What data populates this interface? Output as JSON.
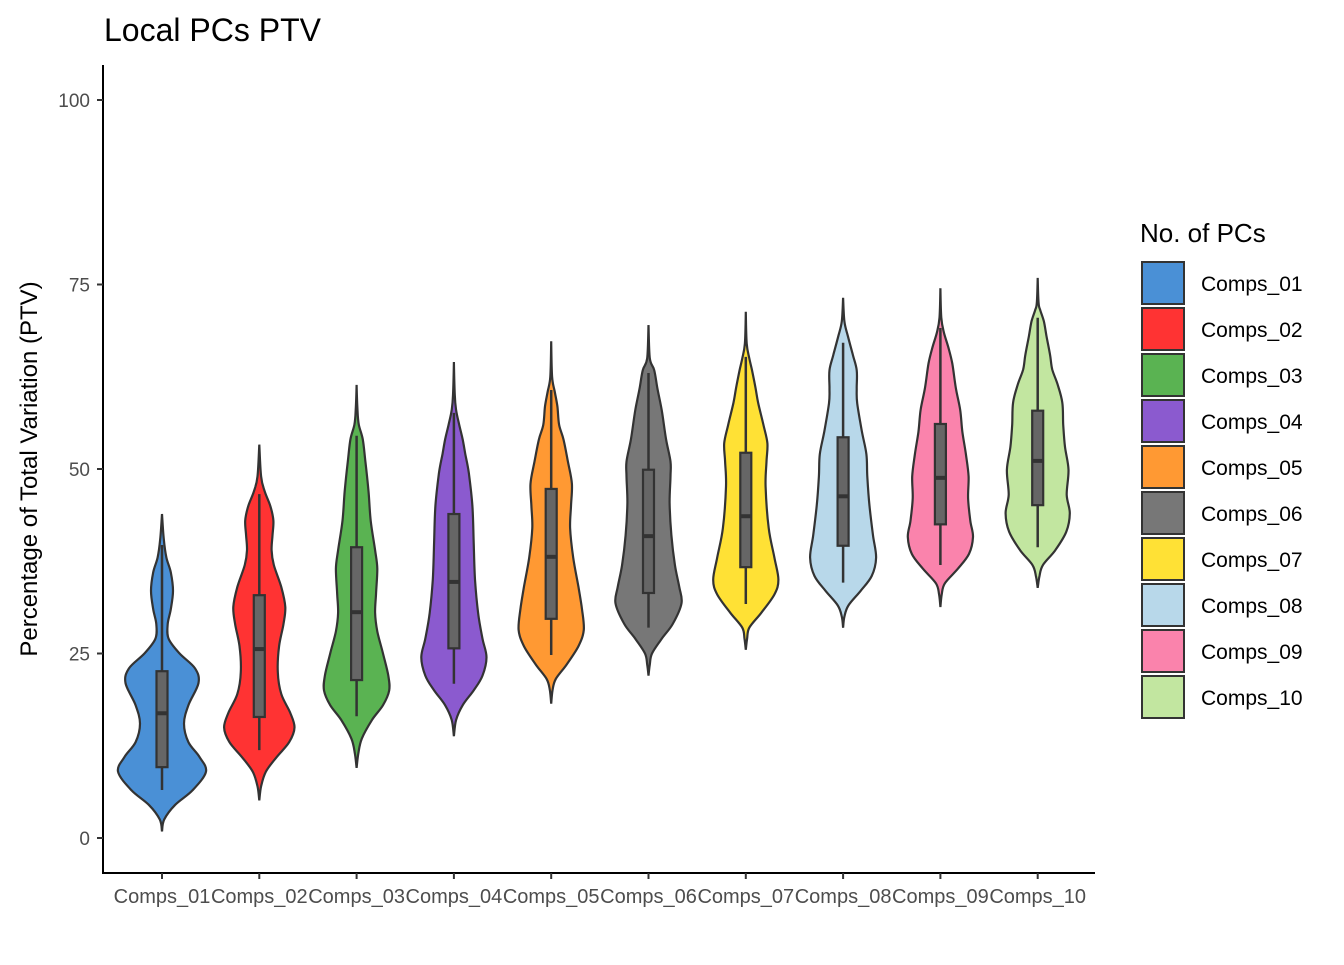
{
  "chart_data": {
    "type": "violin",
    "title": "Local PCs PTV",
    "xlabel": "",
    "ylabel": "Percentage of Total Variation (PTV)",
    "ylim": [
      0,
      100
    ],
    "yticks": [
      0,
      25,
      50,
      75,
      100
    ],
    "grid": false,
    "legend": {
      "title": "No. of PCs",
      "placement": "right"
    },
    "categories": [
      "Comps_01",
      "Comps_02",
      "Comps_03",
      "Comps_04",
      "Comps_05",
      "Comps_06",
      "Comps_07",
      "Comps_08",
      "Comps_09",
      "Comps_10"
    ],
    "series": [
      {
        "name": "Comps_01",
        "color": "#4A90D6",
        "box": {
          "whisker_low": 6.5,
          "q1": 9.6,
          "median": 16.9,
          "q3": 22.6,
          "whisker_high": 39.7
        },
        "density": [
          [
            0.9,
            0
          ],
          [
            2.5,
            0.05
          ],
          [
            4.5,
            0.3
          ],
          [
            6.5,
            0.7
          ],
          [
            9,
            1.0
          ],
          [
            11,
            0.85
          ],
          [
            13,
            0.6
          ],
          [
            15.5,
            0.5
          ],
          [
            18,
            0.6
          ],
          [
            21,
            0.83
          ],
          [
            23,
            0.75
          ],
          [
            25,
            0.4
          ],
          [
            27,
            0.15
          ],
          [
            29,
            0.13
          ],
          [
            31,
            0.2
          ],
          [
            33.5,
            0.25
          ],
          [
            36,
            0.2
          ],
          [
            38,
            0.1
          ],
          [
            40.5,
            0.04
          ],
          [
            43.9,
            0
          ]
        ]
      },
      {
        "name": "Comps_02",
        "color": "#FF3333",
        "box": {
          "whisker_low": 11.9,
          "q1": 16.4,
          "median": 25.6,
          "q3": 32.9,
          "whisker_high": 46.6
        },
        "density": [
          [
            5.1,
            0
          ],
          [
            7,
            0.04
          ],
          [
            9,
            0.15
          ],
          [
            11,
            0.4
          ],
          [
            13,
            0.68
          ],
          [
            15,
            0.8
          ],
          [
            17,
            0.7
          ],
          [
            19.5,
            0.5
          ],
          [
            22.5,
            0.42
          ],
          [
            26,
            0.45
          ],
          [
            29,
            0.55
          ],
          [
            31.3,
            0.59
          ],
          [
            34,
            0.5
          ],
          [
            37,
            0.33
          ],
          [
            39,
            0.28
          ],
          [
            41,
            0.3
          ],
          [
            43,
            0.32
          ],
          [
            45,
            0.25
          ],
          [
            47,
            0.12
          ],
          [
            49,
            0.04
          ],
          [
            53.3,
            0
          ]
        ]
      },
      {
        "name": "Comps_03",
        "color": "#5AB352",
        "box": {
          "whisker_low": 16.5,
          "q1": 21.4,
          "median": 30.6,
          "q3": 39.4,
          "whisker_high": 54.5
        },
        "density": [
          [
            9.5,
            0
          ],
          [
            11.5,
            0.04
          ],
          [
            13.5,
            0.12
          ],
          [
            16,
            0.35
          ],
          [
            18,
            0.6
          ],
          [
            20,
            0.74
          ],
          [
            22,
            0.72
          ],
          [
            25,
            0.6
          ],
          [
            28,
            0.47
          ],
          [
            30.5,
            0.42
          ],
          [
            33,
            0.44
          ],
          [
            36.5,
            0.47
          ],
          [
            39,
            0.42
          ],
          [
            43,
            0.32
          ],
          [
            47,
            0.27
          ],
          [
            51,
            0.2
          ],
          [
            54,
            0.14
          ],
          [
            56,
            0.05
          ],
          [
            58,
            0.02
          ],
          [
            61.4,
            0
          ]
        ]
      },
      {
        "name": "Comps_04",
        "color": "#8B5ACF",
        "box": {
          "whisker_low": 20.9,
          "q1": 25.7,
          "median": 34.7,
          "q3": 43.9,
          "whisker_high": 57.6
        },
        "density": [
          [
            13.8,
            0
          ],
          [
            16,
            0.05
          ],
          [
            18,
            0.2
          ],
          [
            20,
            0.45
          ],
          [
            22,
            0.65
          ],
          [
            24.5,
            0.74
          ],
          [
            27,
            0.65
          ],
          [
            30.5,
            0.55
          ],
          [
            35,
            0.48
          ],
          [
            40,
            0.45
          ],
          [
            45,
            0.42
          ],
          [
            49.4,
            0.34
          ],
          [
            52,
            0.26
          ],
          [
            54,
            0.2
          ],
          [
            56,
            0.12
          ],
          [
            58,
            0.05
          ],
          [
            60,
            0.02
          ],
          [
            64.5,
            0
          ]
        ]
      },
      {
        "name": "Comps_05",
        "color": "#FF9933",
        "box": {
          "whisker_low": 24.8,
          "q1": 29.7,
          "median": 38.1,
          "q3": 47.3,
          "whisker_high": 60.7
        },
        "density": [
          [
            18.2,
            0
          ],
          [
            20,
            0.03
          ],
          [
            21.5,
            0.1
          ],
          [
            23.5,
            0.35
          ],
          [
            26,
            0.62
          ],
          [
            28.2,
            0.74
          ],
          [
            31,
            0.7
          ],
          [
            34,
            0.62
          ],
          [
            38,
            0.5
          ],
          [
            42,
            0.43
          ],
          [
            45,
            0.45
          ],
          [
            48,
            0.47
          ],
          [
            51,
            0.38
          ],
          [
            54,
            0.28
          ],
          [
            56,
            0.18
          ],
          [
            58.5,
            0.14
          ],
          [
            60.5,
            0.08
          ],
          [
            62.5,
            0.02
          ],
          [
            67.3,
            0
          ]
        ]
      },
      {
        "name": "Comps_06",
        "color": "#777777",
        "box": {
          "whisker_low": 28.5,
          "q1": 33.2,
          "median": 40.9,
          "q3": 49.9,
          "whisker_high": 63.0
        },
        "density": [
          [
            22,
            0
          ],
          [
            23.5,
            0.03
          ],
          [
            25,
            0.08
          ],
          [
            27,
            0.3
          ],
          [
            29,
            0.55
          ],
          [
            31.8,
            0.75
          ],
          [
            34,
            0.7
          ],
          [
            37,
            0.6
          ],
          [
            41,
            0.52
          ],
          [
            45.4,
            0.48
          ],
          [
            49,
            0.5
          ],
          [
            51,
            0.5
          ],
          [
            54,
            0.4
          ],
          [
            58,
            0.3
          ],
          [
            61,
            0.2
          ],
          [
            63.4,
            0.13
          ],
          [
            65,
            0.03
          ],
          [
            69.5,
            0
          ]
        ]
      },
      {
        "name": "Comps_07",
        "color": "#FFE135",
        "box": {
          "whisker_low": 31.7,
          "q1": 36.7,
          "median": 43.6,
          "q3": 52.2,
          "whisker_high": 65.2
        },
        "density": [
          [
            25.5,
            0
          ],
          [
            27,
            0.03
          ],
          [
            28.5,
            0.08
          ],
          [
            30.5,
            0.35
          ],
          [
            33,
            0.65
          ],
          [
            35,
            0.74
          ],
          [
            38,
            0.65
          ],
          [
            42,
            0.52
          ],
          [
            47.6,
            0.45
          ],
          [
            51,
            0.47
          ],
          [
            53.5,
            0.49
          ],
          [
            56,
            0.4
          ],
          [
            59,
            0.28
          ],
          [
            61,
            0.22
          ],
          [
            63.4,
            0.14
          ],
          [
            65,
            0.08
          ],
          [
            67,
            0.02
          ],
          [
            71.3,
            0
          ]
        ]
      },
      {
        "name": "Comps_08",
        "color": "#B8D8EA",
        "box": {
          "whisker_low": 34.6,
          "q1": 39.6,
          "median": 46.3,
          "q3": 54.3,
          "whisker_high": 67.1
        },
        "density": [
          [
            28.5,
            0
          ],
          [
            30,
            0.03
          ],
          [
            31.5,
            0.12
          ],
          [
            33.5,
            0.4
          ],
          [
            35.5,
            0.65
          ],
          [
            38,
            0.75
          ],
          [
            41,
            0.68
          ],
          [
            45,
            0.6
          ],
          [
            49,
            0.55
          ],
          [
            52,
            0.53
          ],
          [
            55,
            0.43
          ],
          [
            58.9,
            0.32
          ],
          [
            61,
            0.31
          ],
          [
            63.4,
            0.31
          ],
          [
            65.5,
            0.22
          ],
          [
            68,
            0.11
          ],
          [
            70,
            0.03
          ],
          [
            73.2,
            0
          ]
        ]
      },
      {
        "name": "Comps_09",
        "color": "#FA83AC",
        "box": {
          "whisker_low": 37.0,
          "q1": 42.5,
          "median": 48.8,
          "q3": 56.1,
          "whisker_high": 69.1
        },
        "density": [
          [
            31.3,
            0
          ],
          [
            33,
            0.03
          ],
          [
            34.5,
            0.1
          ],
          [
            36.5,
            0.4
          ],
          [
            38.5,
            0.65
          ],
          [
            40.8,
            0.74
          ],
          [
            43,
            0.68
          ],
          [
            46,
            0.63
          ],
          [
            49,
            0.64
          ],
          [
            52,
            0.58
          ],
          [
            55,
            0.5
          ],
          [
            58,
            0.45
          ],
          [
            61,
            0.35
          ],
          [
            64.3,
            0.27
          ],
          [
            66.5,
            0.18
          ],
          [
            68.5,
            0.08
          ],
          [
            70.5,
            0.02
          ],
          [
            74.5,
            0
          ]
        ]
      },
      {
        "name": "Comps_10",
        "color": "#C2E6A0",
        "box": {
          "whisker_low": 39.4,
          "q1": 45.1,
          "median": 51.1,
          "q3": 57.9,
          "whisker_high": 70.5
        },
        "density": [
          [
            33.9,
            0
          ],
          [
            35.5,
            0.04
          ],
          [
            37,
            0.12
          ],
          [
            39,
            0.4
          ],
          [
            41.5,
            0.65
          ],
          [
            44,
            0.73
          ],
          [
            46.5,
            0.66
          ],
          [
            49.9,
            0.7
          ],
          [
            53,
            0.62
          ],
          [
            56,
            0.58
          ],
          [
            59,
            0.56
          ],
          [
            61.5,
            0.45
          ],
          [
            63.5,
            0.33
          ],
          [
            65.5,
            0.28
          ],
          [
            68,
            0.2
          ],
          [
            70,
            0.14
          ],
          [
            71.5,
            0.06
          ],
          [
            72.5,
            0.02
          ],
          [
            75.9,
            0
          ]
        ]
      }
    ]
  }
}
